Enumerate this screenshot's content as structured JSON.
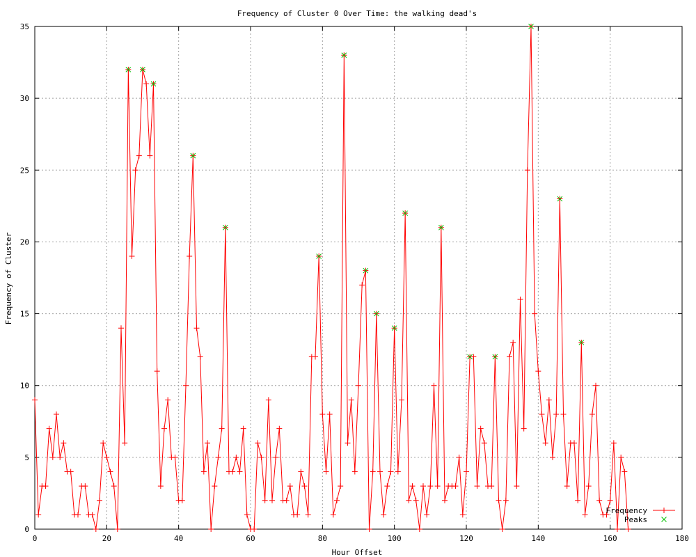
{
  "chart_data": {
    "type": "line",
    "title": "Frequency of Cluster 0 Over Time: the walking dead's",
    "xlabel": "Hour Offset",
    "ylabel": "Frequency of Cluster",
    "xlim": [
      0,
      180
    ],
    "ylim": [
      0,
      35
    ],
    "xticks": [
      0,
      20,
      40,
      60,
      80,
      100,
      120,
      140,
      160,
      180
    ],
    "yticks": [
      0,
      5,
      10,
      15,
      20,
      25,
      30,
      35
    ],
    "grid": true,
    "legend_position": "bottom-right",
    "series": [
      {
        "name": "Frequency",
        "color": "#ff0000",
        "marker": "+",
        "points": [
          [
            0,
            9
          ],
          [
            1,
            1
          ],
          [
            2,
            3
          ],
          [
            3,
            3
          ],
          [
            4,
            7
          ],
          [
            5,
            5
          ],
          [
            6,
            8
          ],
          [
            7,
            5
          ],
          [
            8,
            6
          ],
          [
            9,
            4
          ],
          [
            10,
            4
          ],
          [
            11,
            1
          ],
          [
            12,
            1
          ],
          [
            13,
            3
          ],
          [
            14,
            3
          ],
          [
            15,
            1
          ],
          [
            16,
            1
          ],
          [
            17,
            0
          ],
          [
            18,
            2
          ],
          [
            19,
            6
          ],
          [
            20,
            5
          ],
          [
            21,
            4
          ],
          [
            22,
            3
          ],
          [
            23,
            0
          ],
          [
            24,
            14
          ],
          [
            25,
            6
          ],
          [
            26,
            32
          ],
          [
            27,
            19
          ],
          [
            28,
            25
          ],
          [
            29,
            26
          ],
          [
            30,
            32
          ],
          [
            31,
            31
          ],
          [
            32,
            26
          ],
          [
            33,
            31
          ],
          [
            34,
            11
          ],
          [
            35,
            3
          ],
          [
            36,
            7
          ],
          [
            37,
            9
          ],
          [
            38,
            5
          ],
          [
            39,
            5
          ],
          [
            40,
            2
          ],
          [
            41,
            2
          ],
          [
            42,
            10
          ],
          [
            43,
            19
          ],
          [
            44,
            26
          ],
          [
            45,
            14
          ],
          [
            46,
            12
          ],
          [
            47,
            4
          ],
          [
            48,
            6
          ],
          [
            49,
            0
          ],
          [
            50,
            3
          ],
          [
            51,
            5
          ],
          [
            52,
            7
          ],
          [
            53,
            21
          ],
          [
            54,
            4
          ],
          [
            55,
            4
          ],
          [
            56,
            5
          ],
          [
            57,
            4
          ],
          [
            58,
            7
          ],
          [
            59,
            1
          ],
          [
            60,
            0
          ],
          [
            61,
            0
          ],
          [
            62,
            6
          ],
          [
            63,
            5
          ],
          [
            64,
            2
          ],
          [
            65,
            9
          ],
          [
            66,
            2
          ],
          [
            67,
            5
          ],
          [
            68,
            7
          ],
          [
            69,
            2
          ],
          [
            70,
            2
          ],
          [
            71,
            3
          ],
          [
            72,
            1
          ],
          [
            73,
            1
          ],
          [
            74,
            4
          ],
          [
            75,
            3
          ],
          [
            76,
            1
          ],
          [
            77,
            12
          ],
          [
            78,
            12
          ],
          [
            79,
            19
          ],
          [
            80,
            8
          ],
          [
            81,
            4
          ],
          [
            82,
            8
          ],
          [
            83,
            1
          ],
          [
            84,
            2
          ],
          [
            85,
            3
          ],
          [
            86,
            33
          ],
          [
            87,
            6
          ],
          [
            88,
            9
          ],
          [
            89,
            4
          ],
          [
            90,
            10
          ],
          [
            91,
            17
          ],
          [
            92,
            18
          ],
          [
            93,
            0
          ],
          [
            94,
            4
          ],
          [
            95,
            15
          ],
          [
            96,
            4
          ],
          [
            97,
            1
          ],
          [
            98,
            3
          ],
          [
            99,
            4
          ],
          [
            100,
            14
          ],
          [
            101,
            4
          ],
          [
            102,
            9
          ],
          [
            103,
            22
          ],
          [
            104,
            2
          ],
          [
            105,
            3
          ],
          [
            106,
            2
          ],
          [
            107,
            0
          ],
          [
            108,
            3
          ],
          [
            109,
            1
          ],
          [
            110,
            3
          ],
          [
            111,
            10
          ],
          [
            112,
            3
          ],
          [
            113,
            21
          ],
          [
            114,
            2
          ],
          [
            115,
            3
          ],
          [
            116,
            3
          ],
          [
            117,
            3
          ],
          [
            118,
            5
          ],
          [
            119,
            1
          ],
          [
            120,
            4
          ],
          [
            121,
            12
          ],
          [
            122,
            12
          ],
          [
            123,
            3
          ],
          [
            124,
            7
          ],
          [
            125,
            6
          ],
          [
            126,
            3
          ],
          [
            127,
            3
          ],
          [
            128,
            12
          ],
          [
            129,
            2
          ],
          [
            130,
            0
          ],
          [
            131,
            2
          ],
          [
            132,
            12
          ],
          [
            133,
            13
          ],
          [
            134,
            3
          ],
          [
            135,
            16
          ],
          [
            136,
            7
          ],
          [
            137,
            25
          ],
          [
            138,
            35
          ],
          [
            139,
            15
          ],
          [
            140,
            11
          ],
          [
            141,
            8
          ],
          [
            142,
            6
          ],
          [
            143,
            9
          ],
          [
            144,
            5
          ],
          [
            145,
            8
          ],
          [
            146,
            23
          ],
          [
            147,
            8
          ],
          [
            148,
            3
          ],
          [
            149,
            6
          ],
          [
            150,
            6
          ],
          [
            151,
            2
          ],
          [
            152,
            13
          ],
          [
            153,
            1
          ],
          [
            154,
            3
          ],
          [
            155,
            8
          ],
          [
            156,
            10
          ],
          [
            157,
            2
          ],
          [
            158,
            1
          ],
          [
            159,
            1
          ],
          [
            160,
            2
          ],
          [
            161,
            6
          ],
          [
            162,
            0
          ],
          [
            163,
            5
          ],
          [
            164,
            4
          ],
          [
            165,
            0
          ]
        ]
      },
      {
        "name": "Peaks",
        "color": "#00c000",
        "marker": "x",
        "points": [
          [
            26,
            32
          ],
          [
            30,
            32
          ],
          [
            33,
            31
          ],
          [
            44,
            26
          ],
          [
            53,
            21
          ],
          [
            79,
            19
          ],
          [
            86,
            33
          ],
          [
            92,
            18
          ],
          [
            95,
            15
          ],
          [
            100,
            14
          ],
          [
            103,
            22
          ],
          [
            113,
            21
          ],
          [
            121,
            12
          ],
          [
            128,
            12
          ],
          [
            138,
            35
          ],
          [
            146,
            23
          ],
          [
            152,
            13
          ]
        ]
      }
    ]
  }
}
